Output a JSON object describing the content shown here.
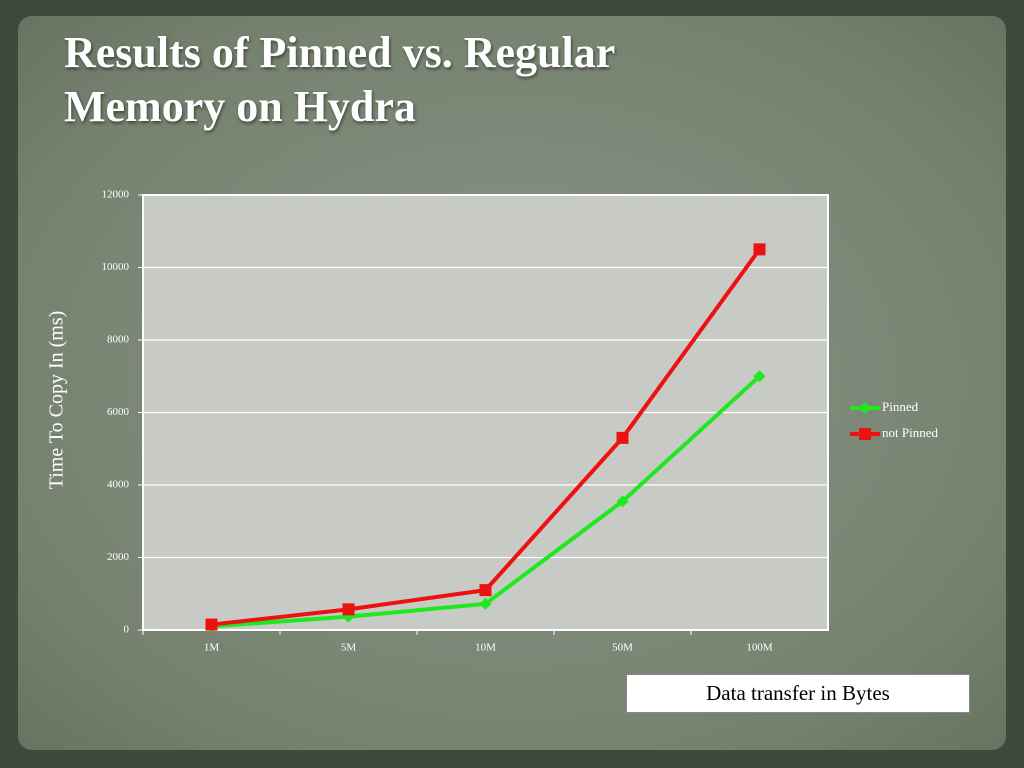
{
  "chart_data": {
    "type": "line",
    "title": "Results of Pinned vs. Regular Memory on Hydra",
    "y_label": "Time To Copy In (ms)",
    "x_label": "Data transfer in Bytes",
    "categories": [
      "1M",
      "5M",
      "10M",
      "50M",
      "100M"
    ],
    "series": [
      {
        "name": "Pinned",
        "color": "#1ee81e",
        "marker": "diamond",
        "values": [
          100,
          370,
          720,
          3550,
          7000
        ]
      },
      {
        "name": "not Pinned",
        "color": "#ee1111",
        "marker": "square",
        "values": [
          150,
          570,
          1100,
          5300,
          10500
        ]
      }
    ],
    "ylim": [
      0,
      12000
    ],
    "yticks": [
      0,
      2000,
      4000,
      6000,
      8000,
      10000,
      12000
    ],
    "grid": true,
    "legend": "right"
  }
}
